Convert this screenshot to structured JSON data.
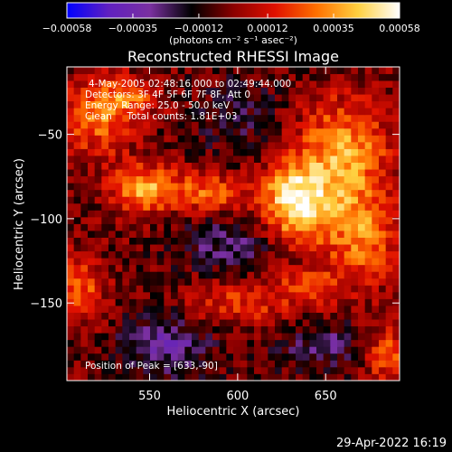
{
  "chart_data": {
    "type": "heatmap",
    "title": "Reconstructed RHESSI Image",
    "xlabel": "Heliocentric X (arcsec)",
    "ylabel": "Heliocentric Y (arcsec)",
    "xlim": [
      503,
      692
    ],
    "ylim": [
      -196,
      -10
    ],
    "x_ticks": [
      550,
      600,
      650
    ],
    "y_ticks": [
      -50,
      -100,
      -150
    ],
    "x_tick_labels": [
      "550",
      "600",
      "650"
    ],
    "y_tick_labels": [
      "−50",
      "−100",
      "−150"
    ],
    "colorbar": {
      "min": -0.00058,
      "max": 0.00058,
      "ticks": [
        -0.00058,
        -0.00035,
        -0.00012,
        0.00012,
        0.00035,
        0.00058
      ],
      "tick_labels": [
        "−0.00058",
        "−0.00035",
        "−0.00012",
        "0.00012",
        "0.00035",
        "0.00058"
      ],
      "unit_label": "(photons cm⁻² s⁻¹ asec⁻²)",
      "colors": [
        "#0000ff",
        "#6020c0",
        "#7a30a0",
        "#000000",
        "#8b0000",
        "#e01000",
        "#ff7000",
        "#ffd040",
        "#ffffff"
      ]
    },
    "annotations": {
      "time_range": "4-May-2005 02:48:16.000 to 02:49:44.000",
      "detectors": "Detectors: 3F 4F 5F 6F 7F 8F, Att 0",
      "energy": "Energy Range: 25.0 - 50.0 keV",
      "clean": "Clean     Total counts: 1.81E+03",
      "peak": "Position of Peak = [633,-90]"
    },
    "peak": {
      "x": 633,
      "y": -90
    },
    "sources": [
      {
        "x": 633,
        "y": -90,
        "amp": 0.00058,
        "sx": 14,
        "sy": 16
      },
      {
        "x": 660,
        "y": -60,
        "amp": 0.0004,
        "sx": 18,
        "sy": 22
      },
      {
        "x": 670,
        "y": -110,
        "amp": 0.00034,
        "sx": 15,
        "sy": 20
      },
      {
        "x": 548,
        "y": -82,
        "amp": 0.00042,
        "sx": 14,
        "sy": 10
      },
      {
        "x": 585,
        "y": -85,
        "amp": 0.0003,
        "sx": 13,
        "sy": 9
      },
      {
        "x": 520,
        "y": -40,
        "amp": 0.00032,
        "sx": 14,
        "sy": 16
      },
      {
        "x": 540,
        "y": -28,
        "amp": 0.00026,
        "sx": 12,
        "sy": 8
      },
      {
        "x": 510,
        "y": -140,
        "amp": 0.0003,
        "sx": 10,
        "sy": 14
      },
      {
        "x": 600,
        "y": -150,
        "amp": 0.00022,
        "sx": 22,
        "sy": 10
      },
      {
        "x": 640,
        "y": -140,
        "amp": 0.0002,
        "sx": 14,
        "sy": 8
      },
      {
        "x": 685,
        "y": -180,
        "amp": 0.0003,
        "sx": 10,
        "sy": 12
      },
      {
        "x": 560,
        "y": -175,
        "amp": -0.00025,
        "sx": 18,
        "sy": 14
      },
      {
        "x": 595,
        "y": -115,
        "amp": -0.0002,
        "sx": 20,
        "sy": 12
      },
      {
        "x": 650,
        "y": -175,
        "amp": -0.00018,
        "sx": 22,
        "sy": 10
      },
      {
        "x": 600,
        "y": -40,
        "amp": -0.00012,
        "sx": 18,
        "sy": 18
      }
    ]
  },
  "footer": {
    "timestamp": "29-Apr-2022 16:19"
  }
}
